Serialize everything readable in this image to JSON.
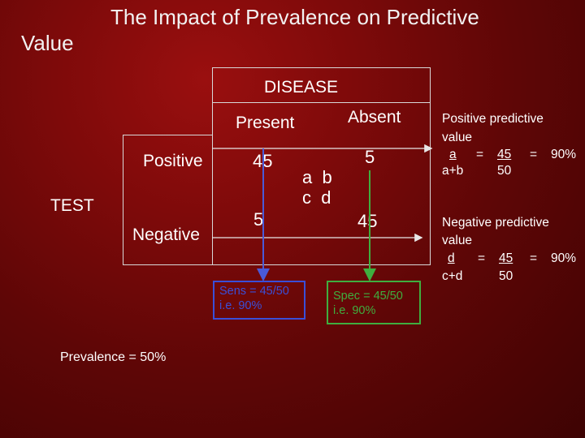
{
  "title": {
    "line1": "The Impact of Prevalence on Predictive",
    "line2": "Value"
  },
  "table": {
    "disease_header": "DISEASE",
    "col_present": "Present",
    "col_absent": "Absent",
    "row_header": "TEST",
    "row_positive": "Positive",
    "row_negative": "Negative",
    "cell_a": "45",
    "cell_b": "5",
    "cell_c": "5",
    "cell_d": "45",
    "key_row1": "a  b",
    "key_row2": "c  d"
  },
  "sensitivity": {
    "line1": "Sens = 45/50",
    "line2": "i.e. 90%",
    "color": "#3a4fd8"
  },
  "specificity": {
    "line1": "Spec = 45/50",
    "line2": "i.e. 90%",
    "color": "#3fae3f"
  },
  "ppv": {
    "title1": "Positive predictive",
    "title2": "value",
    "num": "a",
    "eq1": "=",
    "val_num": "45",
    "eq2": "=",
    "result": "90%",
    "den": "a+b",
    "val_den": "50"
  },
  "npv": {
    "title1": "Negative predictive",
    "title2": "value",
    "num": "d",
    "eq1": "=",
    "val_num": "45",
    "eq2": "=",
    "result": "90%",
    "den": "c+d",
    "val_den": "50"
  },
  "prevalence": "Prevalence = 50%",
  "colors": {
    "background": "#7e0a0a",
    "arrow_blue": "#4a5ad8",
    "arrow_green": "#3fae3f",
    "arrow_white": "#e8e8e8"
  }
}
